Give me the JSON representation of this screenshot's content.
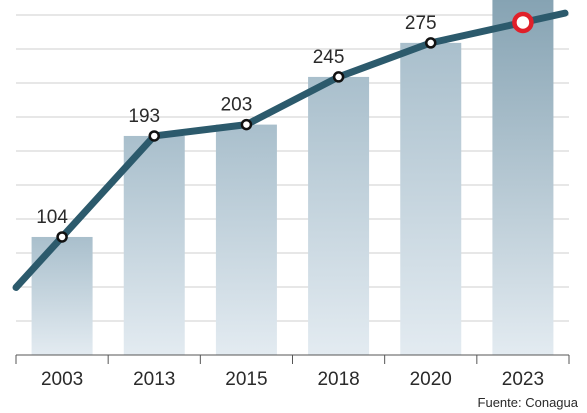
{
  "chart_data": {
    "type": "bar",
    "categories": [
      "2003",
      "2013",
      "2015",
      "2018",
      "2020",
      "2023"
    ],
    "series": [
      {
        "values": [
          104,
          193,
          203,
          245,
          275,
          293
        ]
      }
    ],
    "data_labels": [
      "104",
      "193",
      "203",
      "245",
      "275",
      ""
    ],
    "ylim": [
      0,
      300
    ],
    "grid": true,
    "overlay_line": true,
    "highlight_last_point": true,
    "colors": {
      "bar_top": "#a9bfcc",
      "bar_bottom": "#e3ebf1",
      "bar_last_top": "#86a3b3",
      "line": "#2c5a6c",
      "marker_fill": "#ffffff",
      "marker_stroke": "#111111",
      "highlight_stroke": "#e0202a",
      "grid": "#cfcfcf",
      "axis": "#555555"
    }
  },
  "source": "Fuente: Conagua"
}
